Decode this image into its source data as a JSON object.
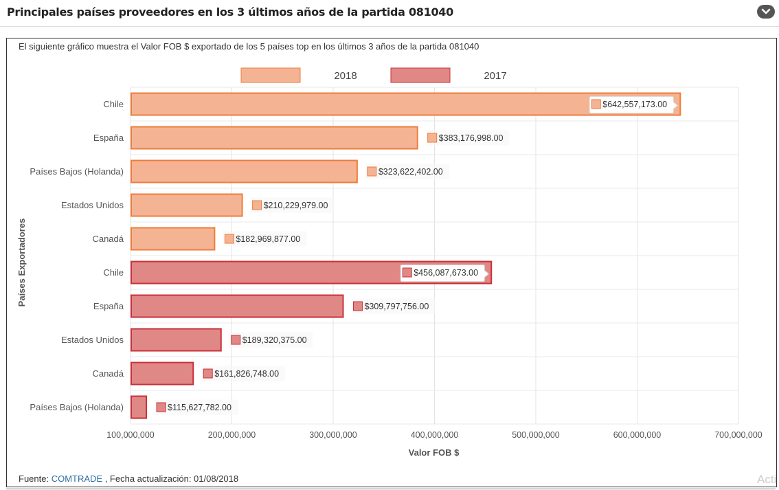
{
  "header": {
    "title": "Principales países proveedores en los 3 últimos años de la partida 081040"
  },
  "description": "El siguiente gráfico muestra el Valor FOB $ exportado de los 5 países top en los últimos 3 años de la partida 081040",
  "footer": {
    "prefix": "Fuente: ",
    "link": "COMTRADE",
    "suffix": " , Fecha actualización: 01/08/2018"
  },
  "watermark": "Acti",
  "chart_data": {
    "type": "bar",
    "orientation": "horizontal",
    "xlabel": "Valor FOB $",
    "ylabel": "Países Exportadores",
    "xlim": [
      100000000,
      700000000
    ],
    "xticks": [
      "100,000,000",
      "200,000,000",
      "300,000,000",
      "400,000,000",
      "500,000,000",
      "600,000,000",
      "700,000,000"
    ],
    "grid": true,
    "legend_position": "top",
    "series": [
      {
        "name": "2018",
        "color": "#f4b494",
        "border": "#ee7c3c",
        "categories": [
          "Chile",
          "España",
          "Países Bajos (Holanda)",
          "Estados Unidos",
          "Canadá"
        ],
        "values": [
          642557173,
          383176998,
          323622402,
          210229979,
          182969877
        ],
        "labels": [
          "$642,557,173.00",
          "$383,176,998.00",
          "$323,622,402.00",
          "$210,229,979.00",
          "$182,969,877.00"
        ]
      },
      {
        "name": "2017",
        "color": "#e08886",
        "border": "#c9303a",
        "categories": [
          "Chile",
          "España",
          "Estados Unidos",
          "Canadá",
          "Países Bajos (Holanda)"
        ],
        "values": [
          456087673,
          309797756,
          189320375,
          161826748,
          115627782
        ],
        "labels": [
          "$456,087,673.00",
          "$309,797,756.00",
          "$189,320,375.00",
          "$161,826,748.00",
          "$115,627,782.00"
        ]
      }
    ]
  }
}
